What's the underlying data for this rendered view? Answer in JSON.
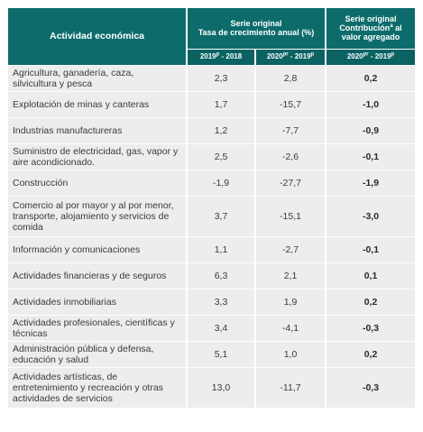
{
  "header": {
    "activity": "Actividad económica",
    "series_line1": "Serie original",
    "series_line2": "Tasa de crecimiento anual (%)",
    "contrib_line1": "Serie original",
    "contrib_line2": "Contribución",
    "contrib_sup": "a",
    "contrib_line2_tail": " al",
    "contrib_line3": "valor agregado",
    "col1_a": "2019",
    "col1_a_sup": "p",
    "col1_b": " - 2018",
    "col2_a": "2020",
    "col2_a_sup": "pr",
    "col2_b": " - 2019",
    "col2_b_sup": "p",
    "col3_a": "2020",
    "col3_a_sup": "pr",
    "col3_b": " - 2019",
    "col3_b_sup": "p"
  },
  "rows": [
    {
      "activity": "Agricultura, ganadería, caza, silvicultura y pesca",
      "v2019": "2,3",
      "v2020": "2,8",
      "contrib": "0,2"
    },
    {
      "activity": "Explotación de minas y canteras",
      "v2019": "1,7",
      "v2020": "-15,7",
      "contrib": "-1,0"
    },
    {
      "activity": "Industrias manufactureras",
      "v2019": "1,2",
      "v2020": "-7,7",
      "contrib": "-0,9"
    },
    {
      "activity": "Suministro de electricidad, gas, vapor y aire acondicionado.",
      "v2019": "2,5",
      "v2020": "-2,6",
      "contrib": "-0,1"
    },
    {
      "activity": "Construcción",
      "v2019": "-1,9",
      "v2020": "-27,7",
      "contrib": "-1,9"
    },
    {
      "activity": "Comercio al por mayor y al por menor, transporte, alojamiento y servicios de comida",
      "v2019": "3,7",
      "v2020": "-15,1",
      "contrib": "-3,0"
    },
    {
      "activity": "Información y comunicaciones",
      "v2019": "1,1",
      "v2020": "-2,7",
      "contrib": "-0,1"
    },
    {
      "activity": "Actividades financieras y de seguros",
      "v2019": "6,3",
      "v2020": "2,1",
      "contrib": "0,1"
    },
    {
      "activity": "Actividades inmobiliarias",
      "v2019": "3,3",
      "v2020": "1,9",
      "contrib": "0,2"
    },
    {
      "activity": "Actividades profesionales, científicas y técnicas",
      "v2019": "3,4",
      "v2020": "-4,1",
      "contrib": "-0,3"
    },
    {
      "activity": "Administración pública y defensa, educación y salud",
      "v2019": "5,1",
      "v2020": "1,0",
      "contrib": "0,2"
    },
    {
      "activity": "Actividades artísticas, de entretenimiento y recreación y otras actividades de servicios",
      "v2019": "13,0",
      "v2020": "-11,7",
      "contrib": "-0,3"
    }
  ]
}
